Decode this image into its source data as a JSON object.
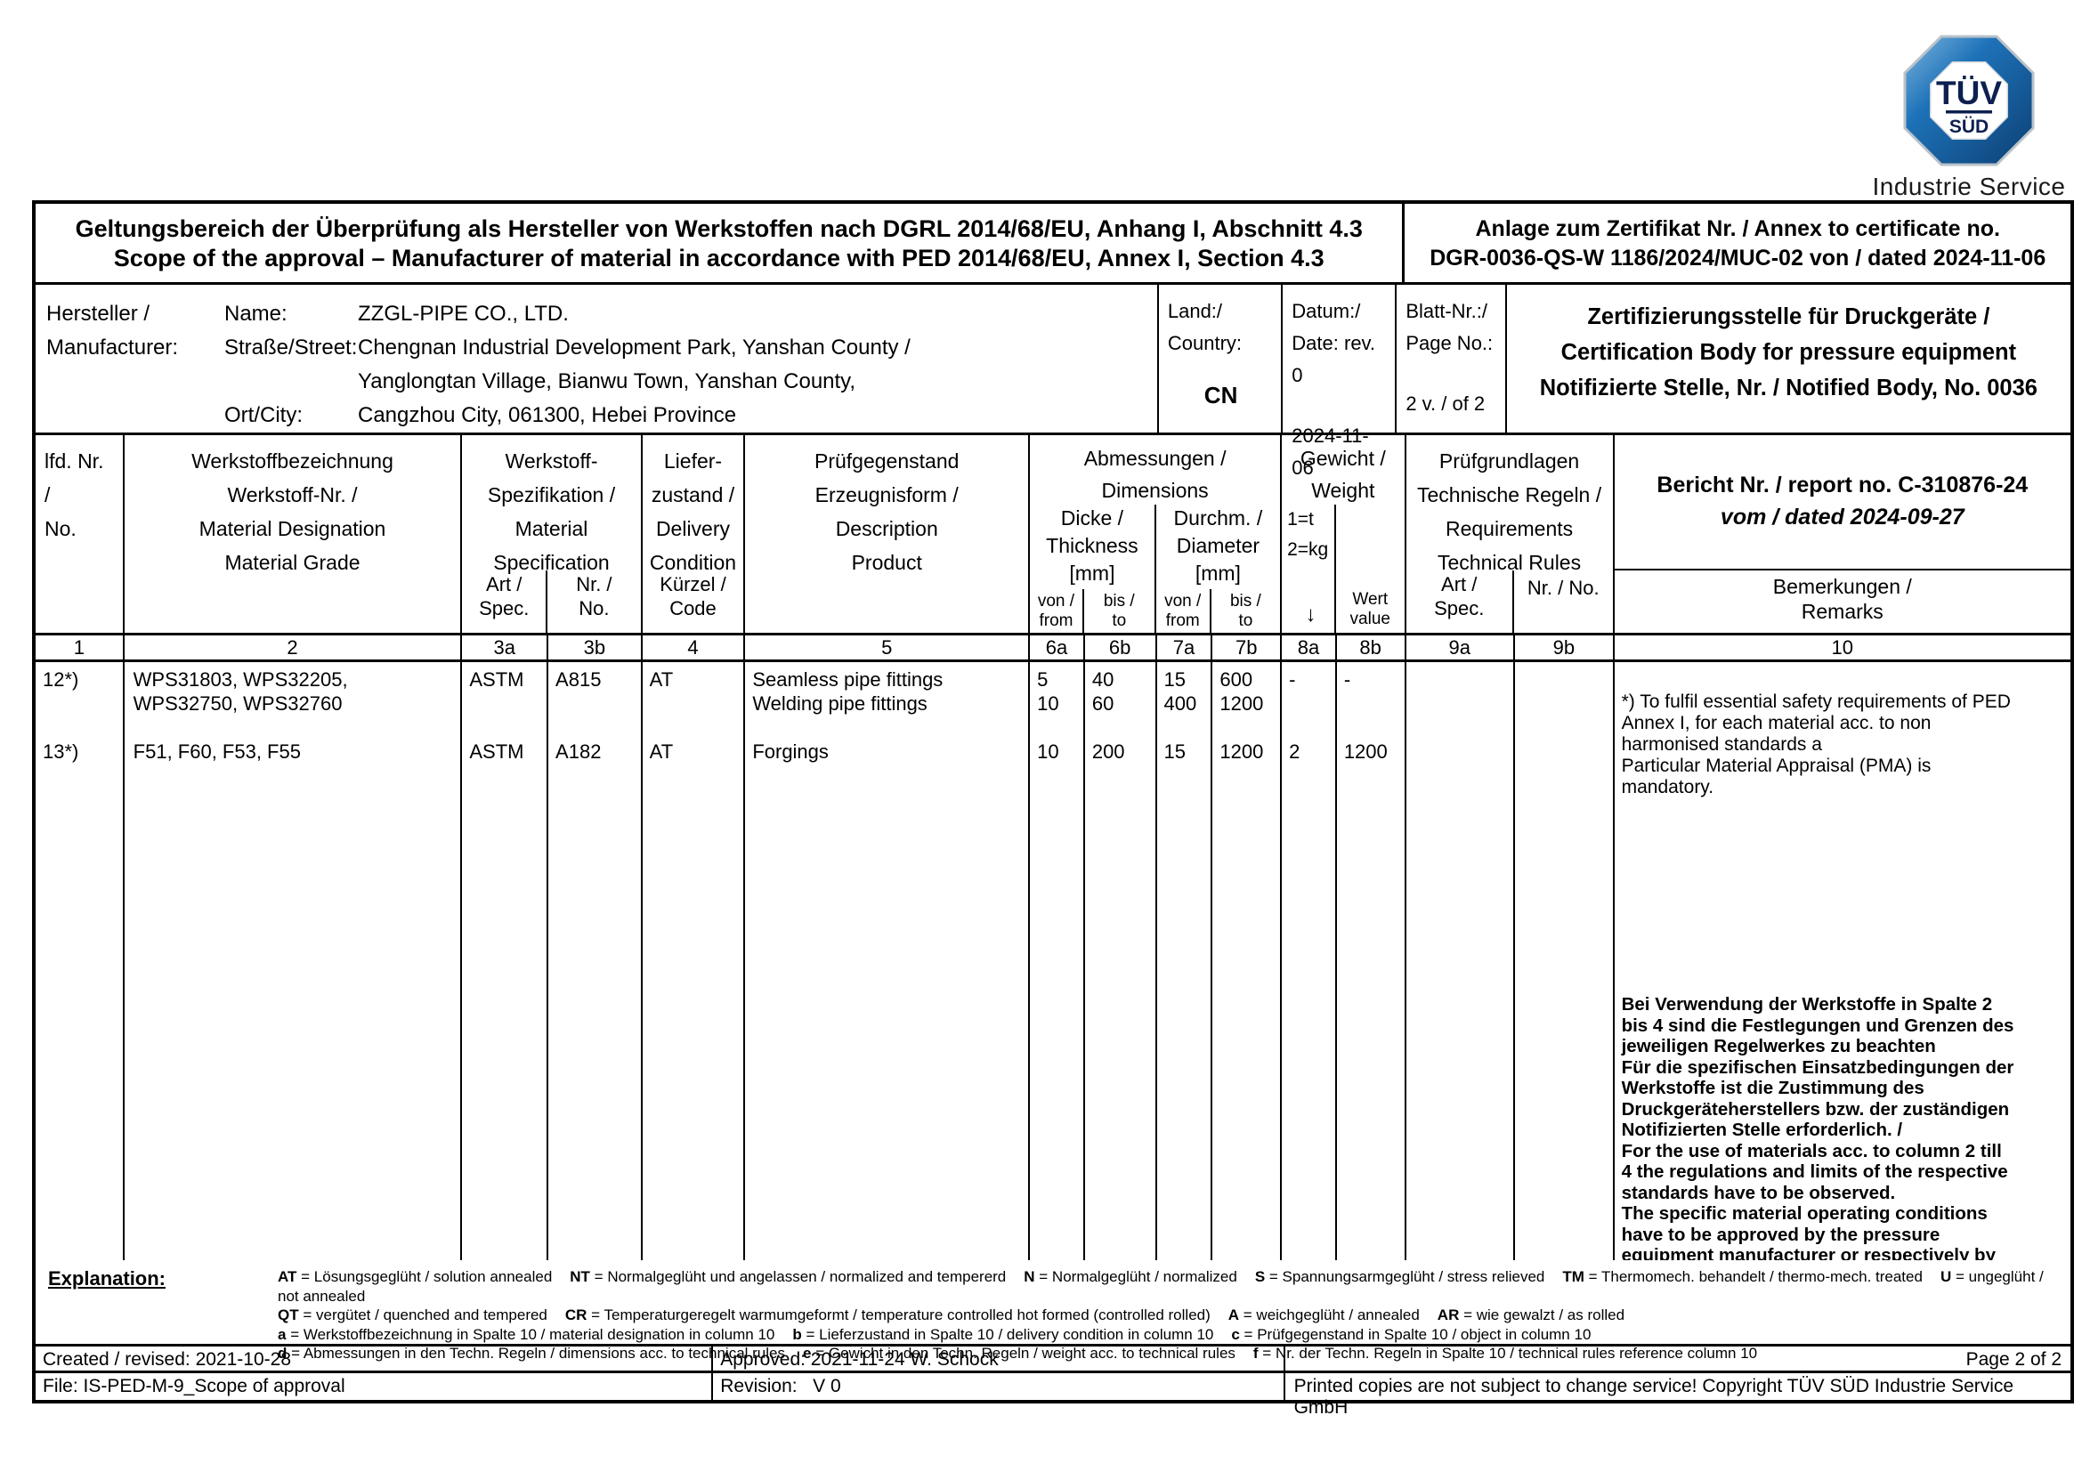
{
  "logo": {
    "tuv": "TÜV",
    "sud": "SÜD",
    "caption": "Industrie Service"
  },
  "title": {
    "scope_de": "Geltungsbereich der Überprüfung als Hersteller von Werkstoffen nach DGRL 2014/68/EU, Anhang I, Abschnitt 4.3",
    "scope_en": "Scope of the approval – Manufacturer of material in accordance with PED 2014/68/EU, Annex I, Section 4.3",
    "annex_label": "Anlage zum Zertifikat Nr. / Annex to certificate no.",
    "annex_no": "DGR-0036-QS-W 1186/2024/MUC-02 von / dated 2024-11-06"
  },
  "manufacturer": {
    "label": "Hersteller /\nManufacturer:",
    "field_labels": "Name:\nStraße/Street:\n\nOrt/City:",
    "values": "ZZGL-PIPE CO., LTD.\nChengnan Industrial Development Park, Yanshan County /\nYanglongtan Village, Bianwu Town, Yanshan County,\nCangzhou City, 061300, Hebei Province",
    "country_label": "Land:/\nCountry:",
    "country_value": "CN",
    "date_label": "Datum:/\nDate: rev. 0",
    "date_value": "2024-11-06",
    "page_label": "Blatt-Nr.:/\nPage No.:",
    "page_value": "2 v. / of 2",
    "cert_body": "Zertifizierungsstelle für Druckgeräte /\nCertification Body for pressure equipment\nNotifizierte Stelle, Nr. / Notified Body, No. 0036"
  },
  "table": {
    "head": {
      "no": "lfd. Nr.\n/\nNo.",
      "designation": "Werkstoffbezeichnung\nWerkstoff-Nr. /\nMaterial Designation\nMaterial Grade",
      "spec_group": "Werkstoff-\nSpezifikation /\nMaterial\nSpecification",
      "spec_art": "Art /\nSpec.",
      "spec_nr": "Nr. /\nNo.",
      "delivery": "Liefer-\nzustand /\nDelivery\nCondition",
      "delivery_code": "Kürzel /\nCode",
      "product": "Prüfgegenstand\nErzeugnisform /\nDescription\nProduct",
      "dims_group": "Abmessungen /\nDimensions",
      "thickness": "Dicke /\nThickness\n[mm]",
      "diameter": "Durchm. /\nDiameter\n[mm]",
      "from1": "von /\nfrom",
      "to1": "bis /\nto",
      "from2": "von /\nfrom",
      "to2": "bis /\nto",
      "weight_group": "Gewicht /\nWeight",
      "weight_units": "1=t\n2=kg",
      "weight_arrow": "↓",
      "weight_value": "Wert\nvalue",
      "rules_group": "Prüfgrundlagen\nTechnische Regeln /\nRequirements\nTechnical Rules",
      "rules_art": "Art /\nSpec.",
      "rules_nr": "Nr. / No.",
      "report": "Bericht Nr. / report no. C-310876-24",
      "report_date": "vom / dated 2024-09-27",
      "remarks": "Bemerkungen /\nRemarks"
    },
    "col_numbers": [
      "1",
      "2",
      "3a",
      "3b",
      "4",
      "5",
      "6a",
      "6b",
      "7a",
      "7b",
      "8a",
      "8b",
      "9a",
      "9b",
      "10"
    ],
    "data": {
      "no": "12*)\n\n\n13*)",
      "designation": "WPS31803, WPS32205,\nWPS32750, WPS32760\n\nF51, F60, F53, F55",
      "spec_art": "ASTM\n\n\nASTM",
      "spec_nr": "A815\n\n\nA182",
      "delivery": "AT\n\n\nAT",
      "product": "Seamless pipe fittings\nWelding pipe fittings\n\nForgings",
      "th_from": "5\n10\n\n10",
      "th_to": "40\n60\n\n200",
      "dia_from": "15\n400\n\n15",
      "dia_to": "600\n1200\n\n1200",
      "w_unit": "-\n\n\n2",
      "w_value": "-\n\n\n1200",
      "rules_art": "",
      "rules_nr": "",
      "remark_note": "*) To fulfil essential safety requirements of PED\nAnnex I, for each material acc. to non\nharmonised standards a\nParticular Material Appraisal (PMA) is\nmandatory.",
      "remark_bold": "Bei Verwendung der Werkstoffe in Spalte 2\nbis 4 sind die Festlegungen und Grenzen des\njeweiligen Regelwerkes zu beachten\nFür die spezifischen Einsatzbedingungen der\nWerkstoffe ist die Zustimmung des\nDruckgeräteherstellers bzw. der zuständigen\nNotifizierten Stelle erforderlich. /\nFor the use of materials acc. to column 2 till\n4 the regulations and limits of the respective\nstandards have to be observed.\nThe specific material operating conditions\nhave to be approved by the pressure\nequipment manufacturer or respectively by\nthe Notified Body in charge."
    }
  },
  "explanation": {
    "label": "Explanation:",
    "lines": [
      [
        [
          "AT",
          "Lösungsgeglüht / solution annealed"
        ],
        [
          "NT",
          "Normalgeglüht und angelassen / normalized and tempererd"
        ],
        [
          "N",
          "Normalgeglüht / normalized"
        ],
        [
          "S",
          "Spannungsarmgeglüht / stress relieved"
        ],
        [
          "TM",
          "Thermomech. behandelt / thermo-mech. treated"
        ],
        [
          "U",
          "ungeglüht / not annealed"
        ]
      ],
      [
        [
          "QT",
          "vergütet / quenched and tempered"
        ],
        [
          "CR",
          "Temperaturgeregelt warmumgeformt / temperature controlled hot formed (controlled rolled)"
        ],
        [
          "A",
          "weichgeglüht / annealed"
        ],
        [
          "AR",
          "wie gewalzt / as rolled"
        ]
      ],
      [
        [
          "a",
          "Werkstoffbezeichnung in Spalte 10 / material designation in column 10"
        ],
        [
          "b",
          "Lieferzustand in Spalte 10 / delivery condition in column 10"
        ],
        [
          "c",
          "Prüfgegenstand in Spalte 10 / object in column 10"
        ]
      ],
      [
        [
          "d",
          "Abmessungen in den Techn. Regeln / dimensions acc. to technical rules"
        ],
        [
          "e",
          "Gewicht in den Techn. Regeln / weight acc. to technical rules"
        ],
        [
          "f",
          "Nr. der Techn. Regeln in Spalte 10 / technical rules reference column 10"
        ]
      ]
    ]
  },
  "footer": {
    "created": "Created / revised: 2021-10-28",
    "approved": "Approved: 2021-11-24 W. Schock",
    "page": "Page 2 of 2",
    "file": "File: IS-PED-M-9_Scope of approval",
    "revision": "Revision:   V 0",
    "copyright": "Printed copies are not subject to change service! Copyright TÜV SÜD Industrie Service GmbH"
  },
  "colors": {
    "logo_blue_light": "#5fa0d4",
    "logo_blue": "#1e72b8",
    "logo_blue_dark": "#0c3f74",
    "logo_navy": "#0d2050",
    "ink": "#000000"
  }
}
